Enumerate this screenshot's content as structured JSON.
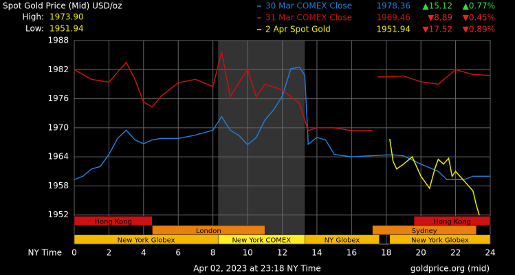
{
  "chart_data": {
    "type": "line",
    "title": "Spot Gold Price (Mid) USD/oz",
    "high_label": "High:",
    "high": "1973.90",
    "low_label": "Low:",
    "low": "1951.94",
    "x_label": "NY Time",
    "footer": "Apr 02, 2023 at 23:18 NY Time",
    "source": "goldprice.org (mid)",
    "xlim": [
      0,
      24
    ],
    "xticks": [
      0,
      2,
      4,
      6,
      8,
      10,
      12,
      14,
      16,
      18,
      20,
      22,
      24
    ],
    "ylim": [
      1946,
      1988
    ],
    "yticks": [
      1952,
      1958,
      1964,
      1970,
      1976,
      1982,
      1988
    ],
    "grid": true,
    "shade": [
      8.3,
      13.3
    ],
    "series": [
      {
        "name": "30 Mar COMEX Close",
        "color": "#1e7fd8",
        "last": "1978.36",
        "change": "▲15.12",
        "change_pct": "▲0.77%",
        "change_color": "#33dd33",
        "x": [
          0,
          0.5,
          1,
          1.5,
          2,
          2.5,
          3,
          3.5,
          4,
          4.5,
          5,
          6,
          7,
          8,
          8.5,
          9,
          9.5,
          10,
          10.5,
          11,
          11.5,
          12,
          12.5,
          13,
          13.3,
          13.5,
          14,
          14.5,
          15,
          16,
          17,
          18,
          18.5,
          19,
          20,
          21,
          21.5,
          22,
          22.5,
          23,
          24
        ],
        "values": [
          1959.3,
          1960,
          1961.5,
          1962,
          1964.5,
          1967.8,
          1969.5,
          1967.5,
          1966.7,
          1967.5,
          1967.8,
          1967.8,
          1968.5,
          1969.5,
          1972.3,
          1969.5,
          1968.4,
          1966.5,
          1968,
          1971.6,
          1973.7,
          1976.5,
          1982.2,
          1982.5,
          1980.8,
          1966.6,
          1968,
          1967.5,
          1964.5,
          1964,
          1964.2,
          1964.4,
          1964.4,
          1964.2,
          1962.5,
          1961,
          1959.3,
          1959.3,
          1959.3,
          1960,
          1960
        ]
      },
      {
        "name": "31 Mar COMEX Close",
        "color": "#cc1111",
        "last": "1969.46",
        "change": "▼8.89",
        "change_pct": "▼0.45%",
        "change_color": "#ee2222",
        "x": [
          0,
          1,
          2,
          3,
          3.5,
          4,
          4.5,
          5,
          6,
          7,
          8,
          8.5,
          9,
          9.5,
          10,
          10.5,
          11,
          12,
          13,
          13.5,
          14,
          15,
          16,
          17,
          17.2,
          17.4,
          17.5,
          18,
          19,
          20,
          21,
          22,
          23,
          24
        ],
        "values": [
          1982,
          1980,
          1979.4,
          1983.5,
          1980,
          1975.3,
          1974.3,
          1976.5,
          1979.3,
          1980,
          1978.5,
          1985.7,
          1976.4,
          1979.3,
          1982.1,
          1976.4,
          1979,
          1977.8,
          1975,
          1969.4,
          1970,
          1970,
          1969.4,
          1969.4,
          1969.5,
          null,
          1980.5,
          1980.5,
          1980.7,
          1979.5,
          1979,
          1982,
          1981,
          1980.8
        ]
      },
      {
        "name": "2 Apr Spot Gold",
        "color": "#eeee00",
        "last": "1951.94",
        "change": "▼17.52",
        "change_pct": "▼0.89%",
        "change_color": "#ee2222",
        "x": [
          18.2,
          18.4,
          18.6,
          19,
          19.5,
          20,
          20.5,
          20.8,
          21,
          21.3,
          21.6,
          21.8,
          22,
          22.5,
          23,
          23.2,
          23.37
        ],
        "values": [
          1967.7,
          1963,
          1961.5,
          1962.5,
          1964,
          1960,
          1957.5,
          1961.5,
          1963.5,
          1962.5,
          1963.7,
          1960,
          1961,
          1959,
          1957,
          1954,
          1951.94
        ]
      }
    ],
    "sessions": [
      {
        "label": "Hong Kong",
        "start": 0,
        "end": 4.5,
        "row": 0,
        "color": "#cc1111"
      },
      {
        "label": "Hong Kong",
        "start": 19.6,
        "end": 24,
        "row": 0,
        "color": "#cc1111"
      },
      {
        "label": "London",
        "start": 4.5,
        "end": 11,
        "row": 1,
        "color": "#e8800e"
      },
      {
        "label": "Sydney",
        "start": 17.2,
        "end": 23.2,
        "row": 1,
        "color": "#e8800e"
      },
      {
        "label": "New York Globex",
        "start": 0,
        "end": 8.3,
        "row": 2,
        "color": "#f5b800"
      },
      {
        "label": "New York COMEX",
        "start": 8.3,
        "end": 13.3,
        "row": 2,
        "color": "#ffee22"
      },
      {
        "label": "NY Globex",
        "start": 13.3,
        "end": 17.6,
        "row": 2,
        "color": "#f5b800"
      },
      {
        "label": "New York Globex",
        "start": 18.2,
        "end": 24,
        "row": 2,
        "color": "#f5b800"
      }
    ]
  }
}
